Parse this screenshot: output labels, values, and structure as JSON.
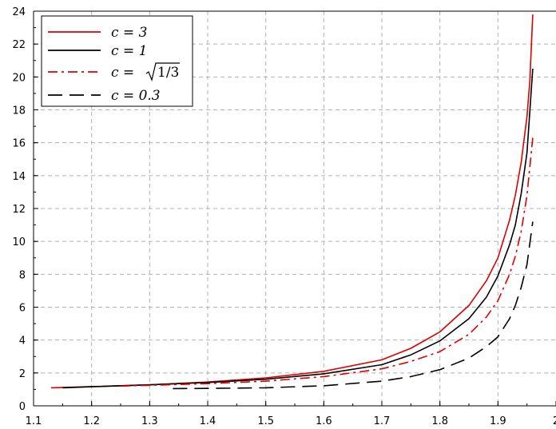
{
  "chart_data": {
    "type": "line",
    "title": "",
    "xlabel": "",
    "ylabel": "",
    "xlim": [
      1.1,
      2.0
    ],
    "ylim": [
      0,
      24
    ],
    "grid": true,
    "legend_position": "top-left",
    "x_ticks": [
      "1.1",
      "1.2",
      "1.3",
      "1.4",
      "1.5",
      "1.6",
      "1.7",
      "1.8",
      "1.9",
      "2"
    ],
    "y_ticks": [
      "0",
      "2",
      "4",
      "6",
      "8",
      "10",
      "12",
      "14",
      "16",
      "18",
      "20",
      "22",
      "24"
    ],
    "series": [
      {
        "name": "c = 3",
        "legend_text": "c = 3",
        "color": "#dd0000",
        "style": "solid",
        "x": [
          1.13,
          1.2,
          1.3,
          1.4,
          1.5,
          1.6,
          1.7,
          1.75,
          1.8,
          1.85,
          1.88,
          1.9,
          1.92,
          1.93,
          1.94,
          1.95,
          1.955,
          1.96
        ],
        "y": [
          1.1,
          1.17,
          1.28,
          1.45,
          1.7,
          2.1,
          2.8,
          3.5,
          4.5,
          6.1,
          7.6,
          9.0,
          11.3,
          12.8,
          14.8,
          17.6,
          19.8,
          23.8
        ]
      },
      {
        "name": "c = 1",
        "legend_text": "c = 1",
        "color": "#000000",
        "style": "solid",
        "x": [
          1.15,
          1.2,
          1.3,
          1.4,
          1.5,
          1.6,
          1.7,
          1.75,
          1.8,
          1.85,
          1.88,
          1.9,
          1.92,
          1.93,
          1.94,
          1.95,
          1.96
        ],
        "y": [
          1.1,
          1.16,
          1.28,
          1.42,
          1.62,
          1.95,
          2.5,
          3.1,
          3.95,
          5.3,
          6.6,
          7.9,
          9.8,
          11.0,
          12.9,
          15.4,
          20.5
        ]
      },
      {
        "name": "c = √(1/3)",
        "legend_prefix": "c = ",
        "legend_root": "1/3",
        "color": "#dd0000",
        "style": "dashdot",
        "x": [
          1.25,
          1.3,
          1.4,
          1.5,
          1.6,
          1.7,
          1.75,
          1.8,
          1.85,
          1.88,
          1.9,
          1.92,
          1.93,
          1.94,
          1.95,
          1.96
        ],
        "y": [
          1.2,
          1.25,
          1.35,
          1.5,
          1.78,
          2.25,
          2.7,
          3.3,
          4.35,
          5.4,
          6.4,
          8.0,
          9.1,
          10.6,
          12.8,
          16.3
        ]
      },
      {
        "name": "c = 0.3",
        "legend_text": "c = 0.3",
        "color": "#000000",
        "style": "dashed",
        "x": [
          1.34,
          1.4,
          1.5,
          1.6,
          1.7,
          1.75,
          1.8,
          1.85,
          1.88,
          1.9,
          1.92,
          1.93,
          1.94,
          1.95,
          1.96
        ],
        "y": [
          1.05,
          1.06,
          1.1,
          1.22,
          1.5,
          1.78,
          2.2,
          2.9,
          3.6,
          4.2,
          5.3,
          6.1,
          7.2,
          8.6,
          11.2
        ]
      }
    ]
  }
}
